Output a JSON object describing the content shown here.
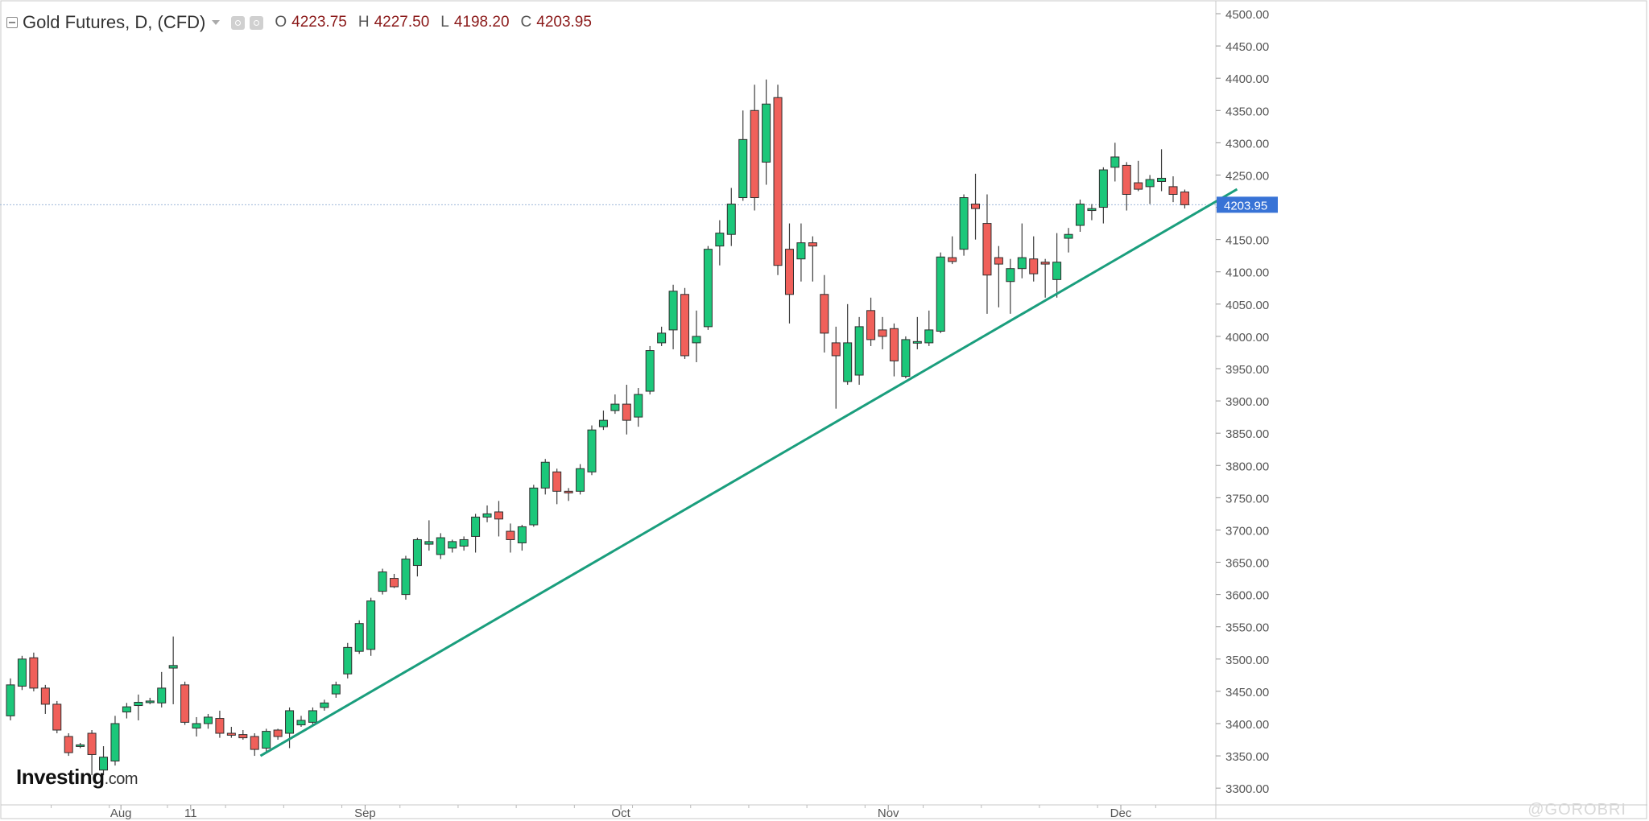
{
  "header": {
    "title": "Gold Futures, D, (CFD)",
    "ohlc": [
      {
        "key": "O",
        "value": "4223.75"
      },
      {
        "key": "H",
        "value": "4227.50"
      },
      {
        "key": "L",
        "value": "4198.20"
      },
      {
        "key": "C",
        "value": "4203.95"
      }
    ]
  },
  "logo": {
    "brand": "Investing",
    "suffix": ".com"
  },
  "watermark": "@GOROBRI",
  "colors": {
    "up": "#1cc77a",
    "down": "#f0605a",
    "trendline": "#1a9e7d",
    "price_tag": "#3873d6",
    "price_line": "#9db7d9"
  },
  "chart_data": {
    "type": "candlestick",
    "ylim": [
      3275,
      4510
    ],
    "y_ticks": [
      3300,
      3350,
      3400,
      3450,
      3500,
      3550,
      3600,
      3650,
      3700,
      3750,
      3800,
      3850,
      3900,
      3950,
      4000,
      4050,
      4100,
      4150,
      4200,
      4250,
      4300,
      4350,
      4400,
      4450,
      4500
    ],
    "y_tick_labels": [
      "3300.00",
      "3350.00",
      "3400.00",
      "3450.00",
      "3500.00",
      "3550.00",
      "3600.00",
      "3650.00",
      "3700.00",
      "3750.00",
      "3800.00",
      "3850.00",
      "3900.00",
      "3950.00",
      "4000.00",
      "4050.00",
      "4100.00",
      "4150.00",
      "4200.00",
      "4250.00",
      "4300.00",
      "4350.00",
      "4400.00",
      "4450.00",
      "4500.00"
    ],
    "x_labels": [
      {
        "label": "Aug",
        "index": 9.5
      },
      {
        "label": "11",
        "index": 15.5
      },
      {
        "label": "Sep",
        "index": 30.5
      },
      {
        "label": "Oct",
        "index": 52.5
      },
      {
        "label": "Nov",
        "index": 75.5
      },
      {
        "label": "Dec",
        "index": 95.5
      }
    ],
    "last_price": 4203.95,
    "last_price_label": "4203.95",
    "trendline": [
      {
        "index": 21.5,
        "price": 3350
      },
      {
        "index": 105.5,
        "price": 4228
      }
    ],
    "candles": [
      {
        "o": 3412,
        "h": 3470,
        "l": 3405,
        "c": 3460
      },
      {
        "o": 3458,
        "h": 3505,
        "l": 3452,
        "c": 3500
      },
      {
        "o": 3502,
        "h": 3510,
        "l": 3450,
        "c": 3455
      },
      {
        "o": 3455,
        "h": 3460,
        "l": 3415,
        "c": 3430
      },
      {
        "o": 3430,
        "h": 3435,
        "l": 3385,
        "c": 3390
      },
      {
        "o": 3380,
        "h": 3385,
        "l": 3350,
        "c": 3355
      },
      {
        "o": 3365,
        "h": 3370,
        "l": 3362,
        "c": 3367
      },
      {
        "o": 3385,
        "h": 3390,
        "l": 3320,
        "c": 3352
      },
      {
        "o": 3328,
        "h": 3365,
        "l": 3320,
        "c": 3348
      },
      {
        "o": 3342,
        "h": 3412,
        "l": 3335,
        "c": 3400
      },
      {
        "o": 3418,
        "h": 3432,
        "l": 3408,
        "c": 3426
      },
      {
        "o": 3428,
        "h": 3445,
        "l": 3405,
        "c": 3433
      },
      {
        "o": 3433,
        "h": 3440,
        "l": 3430,
        "c": 3435
      },
      {
        "o": 3432,
        "h": 3480,
        "l": 3425,
        "c": 3455
      },
      {
        "o": 3486,
        "h": 3535,
        "l": 3430,
        "c": 3490
      },
      {
        "o": 3460,
        "h": 3465,
        "l": 3398,
        "c": 3402
      },
      {
        "o": 3393,
        "h": 3410,
        "l": 3380,
        "c": 3400
      },
      {
        "o": 3400,
        "h": 3415,
        "l": 3392,
        "c": 3410
      },
      {
        "o": 3408,
        "h": 3420,
        "l": 3378,
        "c": 3385
      },
      {
        "o": 3385,
        "h": 3395,
        "l": 3378,
        "c": 3382
      },
      {
        "o": 3383,
        "h": 3390,
        "l": 3375,
        "c": 3378
      },
      {
        "o": 3380,
        "h": 3385,
        "l": 3350,
        "c": 3360
      },
      {
        "o": 3362,
        "h": 3392,
        "l": 3355,
        "c": 3388
      },
      {
        "o": 3390,
        "h": 3392,
        "l": 3375,
        "c": 3380
      },
      {
        "o": 3385,
        "h": 3425,
        "l": 3362,
        "c": 3420
      },
      {
        "o": 3398,
        "h": 3412,
        "l": 3395,
        "c": 3405
      },
      {
        "o": 3402,
        "h": 3425,
        "l": 3398,
        "c": 3420
      },
      {
        "o": 3425,
        "h": 3437,
        "l": 3420,
        "c": 3432
      },
      {
        "o": 3446,
        "h": 3465,
        "l": 3440,
        "c": 3460
      },
      {
        "o": 3477,
        "h": 3525,
        "l": 3470,
        "c": 3518
      },
      {
        "o": 3512,
        "h": 3560,
        "l": 3508,
        "c": 3555
      },
      {
        "o": 3515,
        "h": 3595,
        "l": 3505,
        "c": 3590
      },
      {
        "o": 3605,
        "h": 3640,
        "l": 3600,
        "c": 3635
      },
      {
        "o": 3625,
        "h": 3632,
        "l": 3610,
        "c": 3612
      },
      {
        "o": 3600,
        "h": 3660,
        "l": 3592,
        "c": 3655
      },
      {
        "o": 3645,
        "h": 3688,
        "l": 3628,
        "c": 3685
      },
      {
        "o": 3678,
        "h": 3715,
        "l": 3668,
        "c": 3682
      },
      {
        "o": 3662,
        "h": 3695,
        "l": 3655,
        "c": 3688
      },
      {
        "o": 3672,
        "h": 3685,
        "l": 3665,
        "c": 3682
      },
      {
        "o": 3675,
        "h": 3690,
        "l": 3668,
        "c": 3685
      },
      {
        "o": 3690,
        "h": 3725,
        "l": 3665,
        "c": 3720
      },
      {
        "o": 3720,
        "h": 3738,
        "l": 3712,
        "c": 3725
      },
      {
        "o": 3728,
        "h": 3745,
        "l": 3690,
        "c": 3717
      },
      {
        "o": 3698,
        "h": 3710,
        "l": 3665,
        "c": 3685
      },
      {
        "o": 3680,
        "h": 3708,
        "l": 3668,
        "c": 3705
      },
      {
        "o": 3708,
        "h": 3770,
        "l": 3705,
        "c": 3765
      },
      {
        "o": 3765,
        "h": 3810,
        "l": 3755,
        "c": 3805
      },
      {
        "o": 3790,
        "h": 3795,
        "l": 3740,
        "c": 3760
      },
      {
        "o": 3760,
        "h": 3765,
        "l": 3745,
        "c": 3758
      },
      {
        "o": 3760,
        "h": 3802,
        "l": 3755,
        "c": 3795
      },
      {
        "o": 3790,
        "h": 3862,
        "l": 3785,
        "c": 3855
      },
      {
        "o": 3860,
        "h": 3885,
        "l": 3855,
        "c": 3870
      },
      {
        "o": 3885,
        "h": 3910,
        "l": 3880,
        "c": 3895
      },
      {
        "o": 3895,
        "h": 3925,
        "l": 3848,
        "c": 3870
      },
      {
        "o": 3875,
        "h": 3920,
        "l": 3860,
        "c": 3910
      },
      {
        "o": 3915,
        "h": 3985,
        "l": 3910,
        "c": 3978
      },
      {
        "o": 3990,
        "h": 4015,
        "l": 3985,
        "c": 4005
      },
      {
        "o": 4010,
        "h": 4080,
        "l": 3980,
        "c": 4070
      },
      {
        "o": 4065,
        "h": 4075,
        "l": 3965,
        "c": 3970
      },
      {
        "o": 3990,
        "h": 4040,
        "l": 3960,
        "c": 4000
      },
      {
        "o": 4015,
        "h": 4140,
        "l": 4010,
        "c": 4135
      },
      {
        "o": 4140,
        "h": 4180,
        "l": 4110,
        "c": 4160
      },
      {
        "o": 4158,
        "h": 4230,
        "l": 4140,
        "c": 4205
      },
      {
        "o": 4215,
        "h": 4350,
        "l": 4210,
        "c": 4305
      },
      {
        "o": 4350,
        "h": 4390,
        "l": 4195,
        "c": 4215
      },
      {
        "o": 4270,
        "h": 4398,
        "l": 4235,
        "c": 4360
      },
      {
        "o": 4370,
        "h": 4390,
        "l": 4095,
        "c": 4110
      },
      {
        "o": 4135,
        "h": 4175,
        "l": 4020,
        "c": 4065
      },
      {
        "o": 4120,
        "h": 4175,
        "l": 4085,
        "c": 4145
      },
      {
        "o": 4145,
        "h": 4155,
        "l": 4085,
        "c": 4140
      },
      {
        "o": 4065,
        "h": 4095,
        "l": 3975,
        "c": 4005
      },
      {
        "o": 3990,
        "h": 4015,
        "l": 3888,
        "c": 3970
      },
      {
        "o": 3930,
        "h": 4050,
        "l": 3925,
        "c": 3990
      },
      {
        "o": 3940,
        "h": 4030,
        "l": 3925,
        "c": 4015
      },
      {
        "o": 4040,
        "h": 4060,
        "l": 3985,
        "c": 3995
      },
      {
        "o": 4010,
        "h": 4030,
        "l": 3980,
        "c": 4000
      },
      {
        "o": 4012,
        "h": 4020,
        "l": 3938,
        "c": 3962
      },
      {
        "o": 3938,
        "h": 4000,
        "l": 3935,
        "c": 3995
      },
      {
        "o": 3990,
        "h": 4030,
        "l": 3980,
        "c": 3992
      },
      {
        "o": 3990,
        "h": 4040,
        "l": 3985,
        "c": 4010
      },
      {
        "o": 4008,
        "h": 4130,
        "l": 4005,
        "c": 4123
      },
      {
        "o": 4122,
        "h": 4155,
        "l": 4112,
        "c": 4116
      },
      {
        "o": 4135,
        "h": 4220,
        "l": 4125,
        "c": 4215
      },
      {
        "o": 4205,
        "h": 4252,
        "l": 4150,
        "c": 4198
      },
      {
        "o": 4175,
        "h": 4220,
        "l": 4035,
        "c": 4095
      },
      {
        "o": 4122,
        "h": 4140,
        "l": 4045,
        "c": 4112
      },
      {
        "o": 4085,
        "h": 4120,
        "l": 4035,
        "c": 4105
      },
      {
        "o": 4105,
        "h": 4175,
        "l": 4090,
        "c": 4122
      },
      {
        "o": 4120,
        "h": 4155,
        "l": 4085,
        "c": 4097
      },
      {
        "o": 4115,
        "h": 4120,
        "l": 4060,
        "c": 4112
      },
      {
        "o": 4088,
        "h": 4160,
        "l": 4060,
        "c": 4115
      },
      {
        "o": 4152,
        "h": 4168,
        "l": 4130,
        "c": 4158
      },
      {
        "o": 4172,
        "h": 4212,
        "l": 4162,
        "c": 4205
      },
      {
        "o": 4195,
        "h": 4205,
        "l": 4180,
        "c": 4198
      },
      {
        "o": 4200,
        "h": 4262,
        "l": 4175,
        "c": 4258
      },
      {
        "o": 4262,
        "h": 4300,
        "l": 4240,
        "c": 4278
      },
      {
        "o": 4265,
        "h": 4270,
        "l": 4195,
        "c": 4220
      },
      {
        "o": 4238,
        "h": 4272,
        "l": 4225,
        "c": 4228
      },
      {
        "o": 4232,
        "h": 4250,
        "l": 4205,
        "c": 4243
      },
      {
        "o": 4240,
        "h": 4290,
        "l": 4225,
        "c": 4245
      },
      {
        "o": 4232,
        "h": 4248,
        "l": 4208,
        "c": 4220
      },
      {
        "o": 4223.75,
        "h": 4227.5,
        "l": 4198.2,
        "c": 4203.95
      }
    ]
  }
}
